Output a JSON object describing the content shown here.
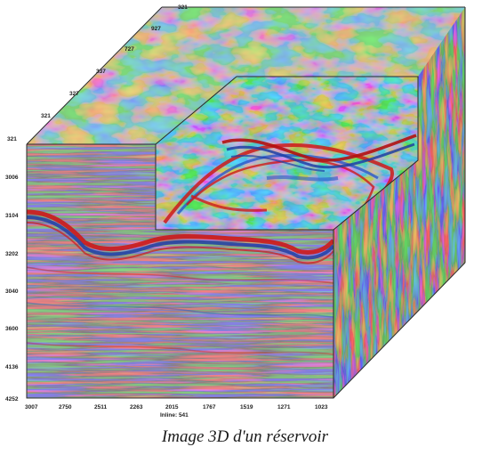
{
  "figure": {
    "caption": "Image 3D d'un réservoir",
    "axis_label": "Inline: 541",
    "depth_ticks": [
      "3006",
      "3104",
      "3202",
      "3040",
      "3600",
      "4136",
      "4252"
    ],
    "top_ticks": [
      "321",
      "321",
      "327",
      "337",
      "727",
      "927",
      "321"
    ],
    "inline_ticks": [
      "3007",
      "2750",
      "2511",
      "2263",
      "2015",
      "1767",
      "1519",
      "1271",
      "1023"
    ],
    "colors": {
      "positive": "#cc1a1a",
      "negative": "#2b57c8",
      "background": "#ecdfe2",
      "frame": "#2a2a2a"
    }
  }
}
